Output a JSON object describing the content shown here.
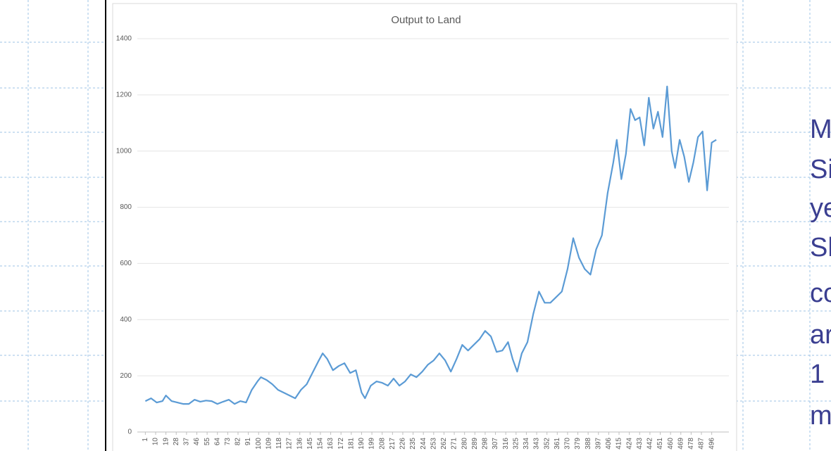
{
  "chart_data": {
    "type": "line",
    "title": "Output to Land",
    "color": "#5b9bd5",
    "x": [
      1,
      6,
      11,
      16,
      19,
      24,
      29,
      34,
      39,
      44,
      49,
      54,
      59,
      64,
      69,
      74,
      79,
      84,
      89,
      94,
      99,
      102,
      107,
      112,
      117,
      122,
      127,
      132,
      137,
      142,
      147,
      152,
      156,
      160,
      165,
      170,
      175,
      180,
      185,
      190,
      193,
      198,
      203,
      208,
      213,
      218,
      223,
      228,
      233,
      238,
      243,
      248,
      253,
      258,
      263,
      268,
      273,
      278,
      283,
      288,
      293,
      298,
      303,
      308,
      313,
      318,
      322,
      326,
      330,
      335,
      340,
      345,
      350,
      355,
      360,
      365,
      370,
      375,
      380,
      385,
      390,
      395,
      400,
      405,
      410,
      413,
      417,
      421,
      425,
      429,
      433,
      437,
      441,
      445,
      449,
      453,
      457,
      461,
      464,
      468,
      472,
      476,
      480,
      484,
      488,
      492,
      496,
      500
    ],
    "values": [
      110,
      120,
      105,
      110,
      130,
      110,
      105,
      100,
      100,
      115,
      108,
      112,
      110,
      100,
      108,
      115,
      100,
      110,
      105,
      150,
      180,
      195,
      185,
      170,
      150,
      140,
      130,
      120,
      150,
      170,
      210,
      250,
      280,
      260,
      220,
      235,
      245,
      210,
      220,
      140,
      120,
      165,
      180,
      175,
      165,
      190,
      165,
      180,
      205,
      195,
      215,
      240,
      255,
      280,
      255,
      215,
      260,
      310,
      290,
      310,
      330,
      360,
      340,
      285,
      290,
      320,
      260,
      215,
      280,
      320,
      420,
      500,
      460,
      460,
      480,
      500,
      580,
      690,
      620,
      580,
      560,
      650,
      700,
      850,
      960,
      1040,
      900,
      990,
      1150,
      1110,
      1120,
      1020,
      1190,
      1080,
      1140,
      1050,
      1230,
      1000,
      940,
      1040,
      980,
      890,
      960,
      1050,
      1070,
      860,
      1030,
      1040
    ],
    "xlim": [
      -6,
      511
    ],
    "xticks": [
      1,
      10,
      19,
      28,
      37,
      46,
      55,
      64,
      73,
      82,
      91,
      100,
      109,
      118,
      127,
      136,
      145,
      154,
      163,
      172,
      181,
      190,
      199,
      208,
      217,
      226,
      235,
      244,
      253,
      262,
      271,
      280,
      289,
      298,
      307,
      316,
      325,
      334,
      343,
      352,
      361,
      370,
      379,
      388,
      397,
      406,
      415,
      424,
      433,
      442,
      451,
      460,
      469,
      478,
      487,
      496
    ],
    "ylim": [
      0,
      1400
    ],
    "yticks": [
      0,
      200,
      400,
      600,
      800,
      1000,
      1200,
      1400
    ],
    "grid": true
  },
  "side_text": [
    "M",
    "Si",
    "ye",
    "Sl",
    "co",
    "ar",
    "1",
    "m"
  ]
}
